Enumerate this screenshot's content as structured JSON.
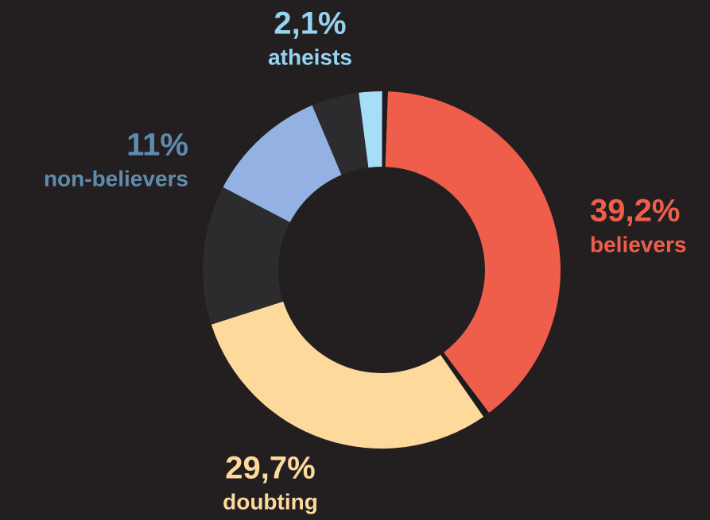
{
  "chart_data": {
    "type": "donut",
    "categories": [
      "believers",
      null,
      "doubting",
      null,
      "non-believers",
      null,
      "atheists",
      null
    ],
    "values": [
      39.2,
      0.6,
      29.7,
      12.6,
      11,
      4.3,
      2.1,
      0.5
    ],
    "value_labels": [
      "39,2%",
      null,
      "29,7%",
      null,
      "11%",
      null,
      "2,1%",
      null
    ],
    "colors": [
      "#ef5e4b",
      "#1e1b1c",
      "#fdd99b",
      "#2c2b2d",
      "#93b1e2",
      "#2c2b2d",
      "#a6ddf8",
      "#1e1b1c"
    ],
    "label_colors": [
      "#ef5e4b",
      null,
      "#fdd99b",
      null,
      "#5f8cae",
      null,
      "#95d4f1",
      null
    ]
  }
}
